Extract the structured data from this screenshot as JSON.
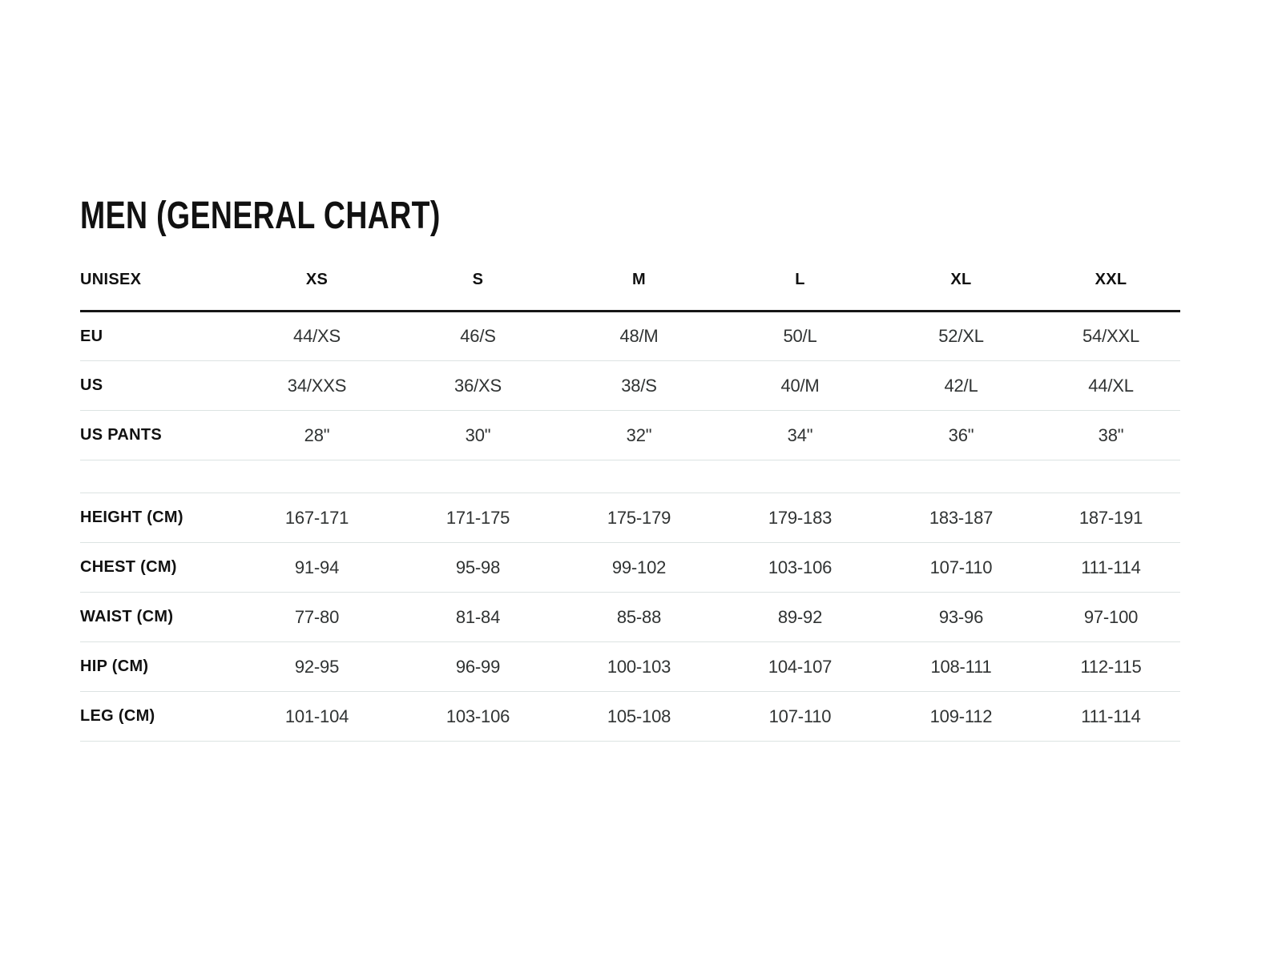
{
  "page": {
    "title": "MEN (GENERAL CHART)"
  },
  "table": {
    "columns": [
      "UNISEX",
      "XS",
      "S",
      "M",
      "L",
      "XL",
      "XXL"
    ],
    "rows": [
      {
        "label": "EU",
        "spacer": false,
        "values": [
          "44/XS",
          "46/S",
          "48/M",
          "50/L",
          "52/XL",
          "54/XXL"
        ]
      },
      {
        "label": "US",
        "spacer": false,
        "values": [
          "34/XXS",
          "36/XS",
          "38/S",
          "40/M",
          "42/L",
          "44/XL"
        ]
      },
      {
        "label": "US PANTS",
        "spacer": false,
        "values": [
          "28\"",
          "30\"",
          "32\"",
          "34\"",
          "36\"",
          "38\""
        ]
      },
      {
        "label": "",
        "spacer": true,
        "values": [
          "",
          "",
          "",
          "",
          "",
          ""
        ]
      },
      {
        "label": "HEIGHT (CM)",
        "spacer": false,
        "values": [
          "167-171",
          "171-175",
          "175-179",
          "179-183",
          "183-187",
          "187-191"
        ]
      },
      {
        "label": "CHEST (CM)",
        "spacer": false,
        "values": [
          "91-94",
          "95-98",
          "99-102",
          "103-106",
          "107-110",
          "111-114"
        ]
      },
      {
        "label": "WAIST (CM)",
        "spacer": false,
        "values": [
          "77-80",
          "81-84",
          "85-88",
          "89-92",
          "93-96",
          "97-100"
        ]
      },
      {
        "label": "HIP (CM)",
        "spacer": false,
        "values": [
          "92-95",
          "96-99",
          "100-103",
          "104-107",
          "108-111",
          "112-115"
        ]
      },
      {
        "label": "LEG (CM)",
        "spacer": false,
        "values": [
          "101-104",
          "103-106",
          "105-108",
          "107-110",
          "109-112",
          "111-114"
        ]
      }
    ]
  },
  "colors": {
    "background": "#ffffff",
    "heading_text": "#111111",
    "value_text": "#303333",
    "header_rule": "#161616",
    "row_divider": "#dce3e2"
  }
}
